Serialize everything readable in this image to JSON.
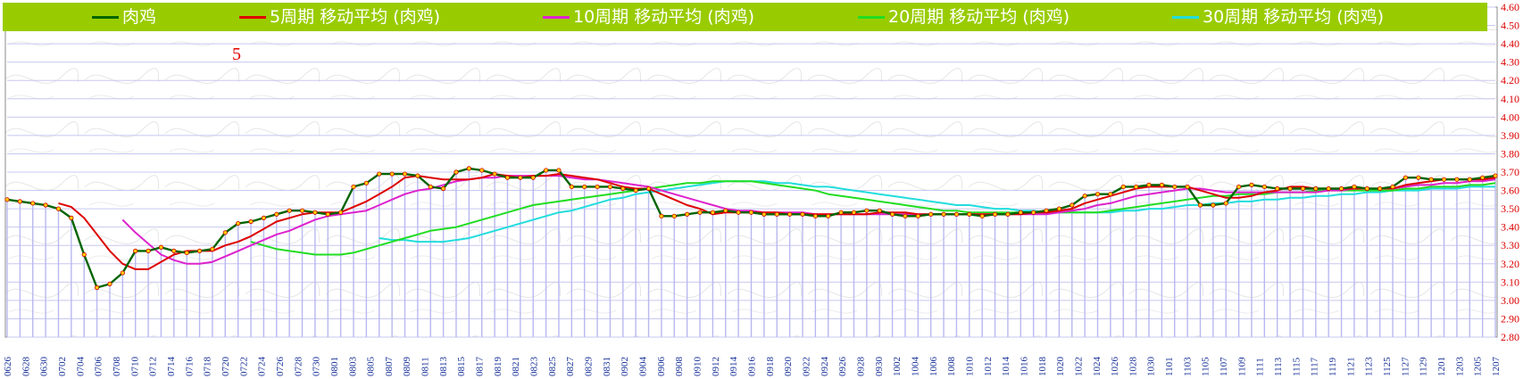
{
  "chart_data": {
    "type": "line",
    "title": "",
    "annotation": "5",
    "xlabel": "",
    "ylabel": "",
    "ylim": [
      2.8,
      4.6
    ],
    "y_ticks": [
      "2.80",
      "2.90",
      "3.00",
      "3.10",
      "3.20",
      "3.30",
      "3.40",
      "3.50",
      "3.60",
      "3.70",
      "3.80",
      "3.90",
      "4.00",
      "4.10",
      "4.20",
      "4.30",
      "4.40",
      "4.50",
      "4.60"
    ],
    "x_labels": [
      "0626",
      "0628",
      "0630",
      "0702",
      "0704",
      "0706",
      "0708",
      "0710",
      "0712",
      "0714",
      "0716",
      "0718",
      "0720",
      "0722",
      "0724",
      "0726",
      "0728",
      "0730",
      "0801",
      "0803",
      "0805",
      "0807",
      "0809",
      "0811",
      "0813",
      "0815",
      "0817",
      "0819",
      "0821",
      "0823",
      "0825",
      "0827",
      "0829",
      "0831",
      "0902",
      "0904",
      "0906",
      "0908",
      "0910",
      "0912",
      "0914",
      "0916",
      "0918",
      "0920",
      "0922",
      "0924",
      "0926",
      "0928",
      "0930",
      "1002",
      "1004",
      "1006",
      "1008",
      "1010",
      "1012",
      "1014",
      "1016",
      "1018",
      "1020",
      "1022",
      "1024",
      "1026",
      "1028",
      "1030",
      "1101",
      "1103",
      "1105",
      "1107",
      "1109",
      "1111",
      "1113",
      "1115",
      "1117",
      "1119",
      "1121",
      "1123",
      "1125",
      "1127",
      "1129",
      "1201",
      "1203",
      "1205",
      "1207"
    ],
    "legend_position": "top",
    "grid": true,
    "colors": {
      "price_line": "#006400",
      "price_marker_fill": "#ffcc00",
      "price_marker_stroke": "#cc0000",
      "ma5": "#dd0000",
      "ma10": "#dd22cc",
      "ma20": "#22dd22",
      "ma30": "#22dddd",
      "axis_text": "#dd0000",
      "x_text": "#1a3399",
      "bars": "#b8b8f0",
      "legend_bg": "#99cc00"
    },
    "series": [
      {
        "name": "肉鸡",
        "key": "price",
        "values": [
          3.55,
          3.54,
          3.53,
          3.52,
          3.5,
          3.45,
          3.25,
          3.07,
          3.09,
          3.15,
          3.27,
          3.27,
          3.29,
          3.27,
          3.26,
          3.27,
          3.28,
          3.37,
          3.42,
          3.43,
          3.45,
          3.47,
          3.49,
          3.49,
          3.48,
          3.47,
          3.48,
          3.62,
          3.64,
          3.69,
          3.69,
          3.69,
          3.68,
          3.62,
          3.61,
          3.7,
          3.72,
          3.71,
          3.69,
          3.67,
          3.67,
          3.67,
          3.71,
          3.71,
          3.62,
          3.62,
          3.62,
          3.62,
          3.61,
          3.6,
          3.61,
          3.46,
          3.46,
          3.47,
          3.48,
          3.48,
          3.49,
          3.48,
          3.48,
          3.47,
          3.47,
          3.47,
          3.47,
          3.46,
          3.46,
          3.48,
          3.48,
          3.49,
          3.49,
          3.47,
          3.46,
          3.46,
          3.47,
          3.47,
          3.47,
          3.47,
          3.46,
          3.47,
          3.47,
          3.48,
          3.48,
          3.49,
          3.5,
          3.52,
          3.57,
          3.58,
          3.58,
          3.62,
          3.62,
          3.63,
          3.63,
          3.62,
          3.62,
          3.52,
          3.52,
          3.53,
          3.62,
          3.63,
          3.62,
          3.61,
          3.61,
          3.61,
          3.61,
          3.61,
          3.61,
          3.62,
          3.61,
          3.61,
          3.62,
          3.67,
          3.67,
          3.66,
          3.66,
          3.66,
          3.66,
          3.67,
          3.68
        ]
      },
      {
        "name": "5周期 移动平均 (肉鸡)",
        "key": "ma5",
        "values": [
          null,
          null,
          null,
          null,
          3.53,
          3.51,
          3.45,
          3.36,
          3.27,
          3.2,
          3.17,
          3.17,
          3.21,
          3.25,
          3.27,
          3.27,
          3.27,
          3.3,
          3.32,
          3.35,
          3.39,
          3.43,
          3.45,
          3.47,
          3.48,
          3.48,
          3.48,
          3.51,
          3.54,
          3.58,
          3.62,
          3.67,
          3.68,
          3.67,
          3.66,
          3.66,
          3.66,
          3.67,
          3.69,
          3.68,
          3.67,
          3.68,
          3.68,
          3.69,
          3.68,
          3.67,
          3.66,
          3.64,
          3.62,
          3.61,
          3.61,
          3.58,
          3.55,
          3.52,
          3.5,
          3.47,
          3.48,
          3.48,
          3.48,
          3.48,
          3.48,
          3.47,
          3.47,
          3.47,
          3.47,
          3.47,
          3.47,
          3.47,
          3.48,
          3.48,
          3.48,
          3.47,
          3.47,
          3.47,
          3.47,
          3.47,
          3.47,
          3.47,
          3.47,
          3.47,
          3.48,
          3.48,
          3.49,
          3.5,
          3.53,
          3.55,
          3.57,
          3.59,
          3.61,
          3.62,
          3.62,
          3.62,
          3.62,
          3.6,
          3.58,
          3.56,
          3.56,
          3.57,
          3.59,
          3.6,
          3.62,
          3.62,
          3.61,
          3.61,
          3.61,
          3.61,
          3.61,
          3.61,
          3.61,
          3.63,
          3.64,
          3.65,
          3.66,
          3.66,
          3.66,
          3.66,
          3.67
        ]
      },
      {
        "name": "10周期 移动平均 (肉鸡)",
        "key": "ma10",
        "values": [
          null,
          null,
          null,
          null,
          null,
          null,
          null,
          null,
          null,
          3.44,
          3.37,
          3.31,
          3.25,
          3.22,
          3.2,
          3.2,
          3.21,
          3.24,
          3.27,
          3.3,
          3.33,
          3.36,
          3.38,
          3.41,
          3.44,
          3.46,
          3.47,
          3.48,
          3.49,
          3.52,
          3.55,
          3.58,
          3.6,
          3.61,
          3.63,
          3.65,
          3.66,
          3.67,
          3.67,
          3.68,
          3.68,
          3.68,
          3.68,
          3.68,
          3.67,
          3.66,
          3.66,
          3.65,
          3.64,
          3.63,
          3.62,
          3.6,
          3.58,
          3.56,
          3.54,
          3.52,
          3.5,
          3.49,
          3.49,
          3.48,
          3.48,
          3.48,
          3.48,
          3.47,
          3.47,
          3.47,
          3.47,
          3.47,
          3.47,
          3.47,
          3.47,
          3.47,
          3.47,
          3.47,
          3.47,
          3.47,
          3.47,
          3.47,
          3.47,
          3.47,
          3.47,
          3.47,
          3.48,
          3.49,
          3.5,
          3.52,
          3.53,
          3.55,
          3.57,
          3.58,
          3.59,
          3.6,
          3.61,
          3.61,
          3.6,
          3.59,
          3.59,
          3.59,
          3.59,
          3.59,
          3.59,
          3.59,
          3.59,
          3.6,
          3.6,
          3.61,
          3.61,
          3.61,
          3.61,
          3.62,
          3.63,
          3.63,
          3.64,
          3.64,
          3.65,
          3.65,
          3.66
        ]
      },
      {
        "name": "20周期 移动平均 (肉鸡)",
        "key": "ma20",
        "values": [
          null,
          null,
          null,
          null,
          null,
          null,
          null,
          null,
          null,
          null,
          null,
          null,
          null,
          null,
          null,
          null,
          null,
          null,
          null,
          3.32,
          3.3,
          3.28,
          3.27,
          3.26,
          3.25,
          3.25,
          3.25,
          3.26,
          3.28,
          3.3,
          3.32,
          3.34,
          3.36,
          3.38,
          3.39,
          3.4,
          3.42,
          3.44,
          3.46,
          3.48,
          3.5,
          3.52,
          3.53,
          3.54,
          3.55,
          3.56,
          3.57,
          3.58,
          3.59,
          3.6,
          3.61,
          3.62,
          3.63,
          3.64,
          3.64,
          3.65,
          3.65,
          3.65,
          3.65,
          3.64,
          3.63,
          3.62,
          3.61,
          3.6,
          3.58,
          3.57,
          3.56,
          3.55,
          3.54,
          3.53,
          3.52,
          3.51,
          3.5,
          3.49,
          3.49,
          3.48,
          3.48,
          3.48,
          3.48,
          3.48,
          3.48,
          3.48,
          3.48,
          3.48,
          3.48,
          3.48,
          3.49,
          3.5,
          3.51,
          3.52,
          3.53,
          3.54,
          3.55,
          3.56,
          3.57,
          3.57,
          3.58,
          3.58,
          3.58,
          3.59,
          3.59,
          3.59,
          3.6,
          3.6,
          3.6,
          3.6,
          3.6,
          3.6,
          3.6,
          3.61,
          3.61,
          3.62,
          3.62,
          3.62,
          3.63,
          3.63,
          3.64
        ]
      },
      {
        "name": "30周期 移动平均 (肉鸡)",
        "key": "ma30",
        "values": [
          null,
          null,
          null,
          null,
          null,
          null,
          null,
          null,
          null,
          null,
          null,
          null,
          null,
          null,
          null,
          null,
          null,
          null,
          null,
          null,
          null,
          null,
          null,
          null,
          null,
          null,
          null,
          null,
          null,
          3.34,
          3.33,
          3.33,
          3.32,
          3.32,
          3.32,
          3.33,
          3.34,
          3.36,
          3.38,
          3.4,
          3.42,
          3.44,
          3.46,
          3.48,
          3.49,
          3.51,
          3.53,
          3.55,
          3.56,
          3.58,
          3.59,
          3.6,
          3.61,
          3.62,
          3.63,
          3.64,
          3.65,
          3.65,
          3.65,
          3.65,
          3.64,
          3.64,
          3.63,
          3.62,
          3.62,
          3.61,
          3.6,
          3.59,
          3.58,
          3.57,
          3.56,
          3.55,
          3.54,
          3.53,
          3.52,
          3.52,
          3.51,
          3.5,
          3.5,
          3.49,
          3.49,
          3.48,
          3.48,
          3.48,
          3.48,
          3.48,
          3.48,
          3.49,
          3.49,
          3.5,
          3.5,
          3.51,
          3.52,
          3.52,
          3.53,
          3.53,
          3.54,
          3.54,
          3.55,
          3.55,
          3.56,
          3.56,
          3.57,
          3.57,
          3.58,
          3.58,
          3.59,
          3.59,
          3.6,
          3.6,
          3.6,
          3.61,
          3.61,
          3.61,
          3.62,
          3.62,
          3.62
        ]
      }
    ]
  }
}
